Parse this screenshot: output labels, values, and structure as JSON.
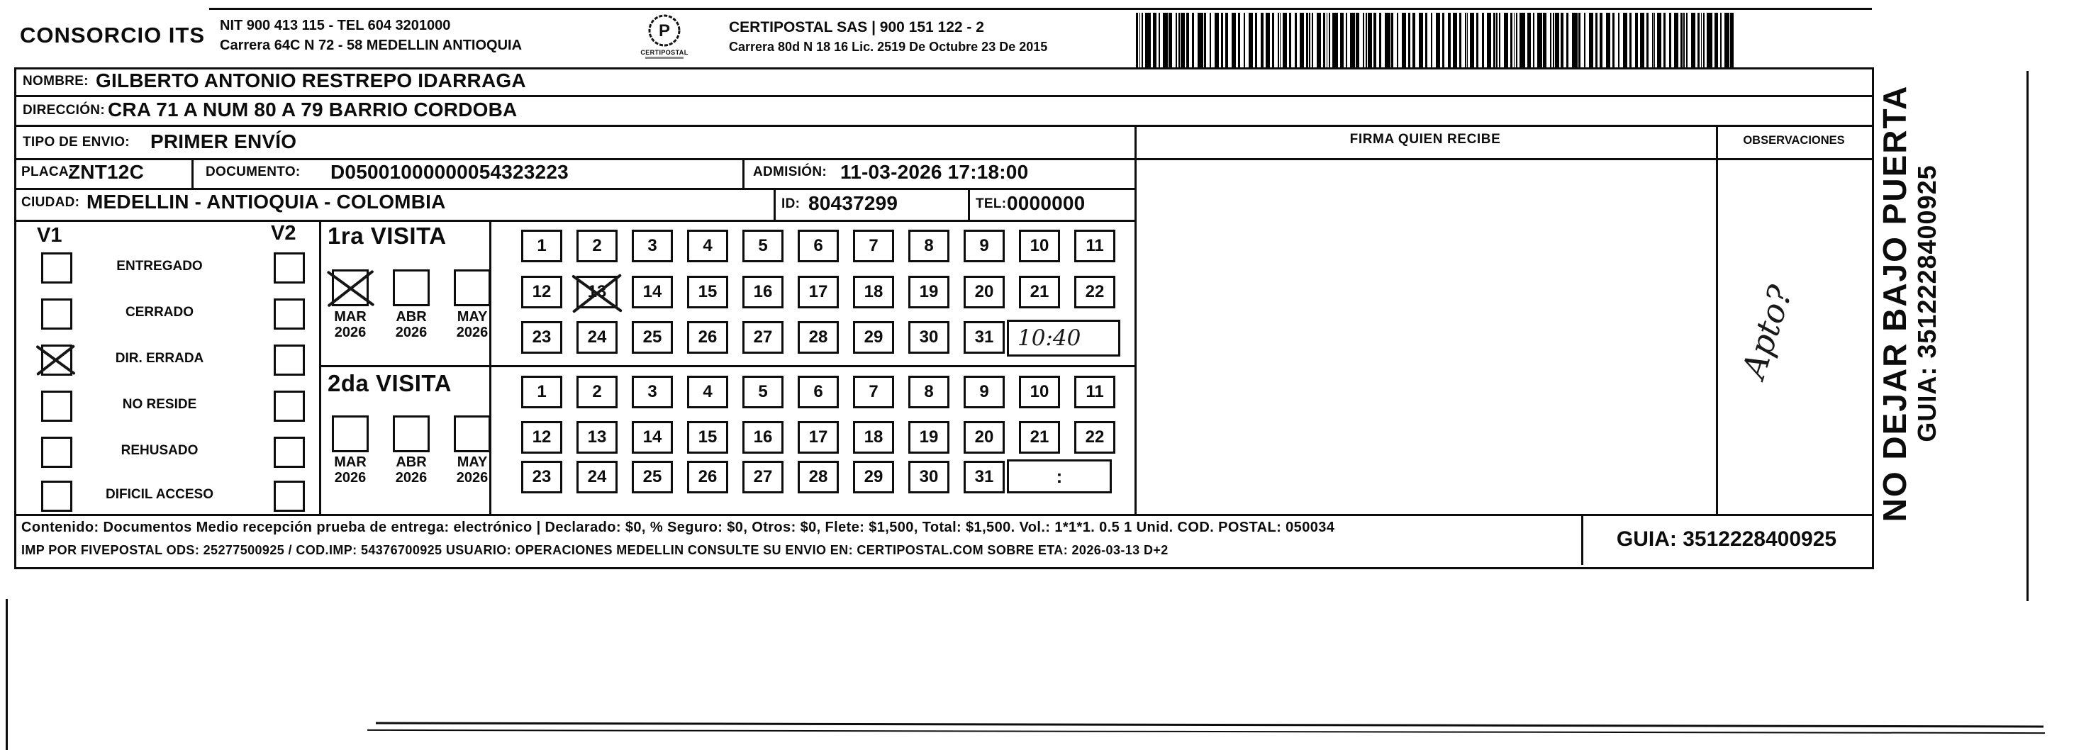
{
  "header": {
    "company": "CONSORCIO ITS",
    "company_line1": "NIT 900 413 115 - TEL 604 3201000",
    "company_line2": "Carrera 64C N 72 - 58 MEDELLIN ANTIOQUIA",
    "logo_text": "CERTIPOSTAL",
    "carrier_line1": "CERTIPOSTAL SAS | 900 151 122 - 2",
    "carrier_line2": "Carrera 80d N 18 16  Lic. 2519 De Octubre 23 De 2015"
  },
  "recipient": {
    "nombre_label": "NOMBRE:",
    "nombre": "GILBERTO ANTONIO RESTREPO IDARRAGA",
    "direccion_label": "DIRECCIÓN:",
    "direccion": "CRA 71 A NUM 80 A 79 BARRIO CORDOBA",
    "tipo_label": "TIPO DE ENVIO:",
    "tipo": "PRIMER ENVÍO",
    "placa_label": "PLACA:",
    "placa": "ZNT12C",
    "documento_label": "DOCUMENTO:",
    "documento": "D05001000000054323223",
    "admision_label": "ADMISIÓN:",
    "admision": "11-03-2026 17:18:00",
    "ciudad_label": "CIUDAD:",
    "ciudad": "MEDELLIN - ANTIOQUIA - COLOMBIA",
    "id_label": "ID:",
    "id_value": "80437299",
    "tel_label": "TEL:",
    "tel_value": "0000000"
  },
  "columns": {
    "firma_header": "FIRMA QUIEN RECIBE",
    "observaciones_header": "OBSERVACIONES",
    "observaciones_note": "Apto?"
  },
  "status": {
    "v1_header": "V1",
    "v2_header": "V2",
    "items": [
      {
        "label": "ENTREGADO",
        "v1": false,
        "v2": false
      },
      {
        "label": "CERRADO",
        "v1": false,
        "v2": false
      },
      {
        "label": "DIR. ERRADA",
        "v1": true,
        "v2": false
      },
      {
        "label": "NO RESIDE",
        "v1": false,
        "v2": false
      },
      {
        "label": "REHUSADO",
        "v1": false,
        "v2": false
      },
      {
        "label": "DIFICIL ACCESO",
        "v1": false,
        "v2": false
      }
    ]
  },
  "visits": [
    {
      "title": "1ra VISITA",
      "months": [
        {
          "month": "MAR",
          "year": "2026",
          "checked": true
        },
        {
          "month": "ABR",
          "year": "2026",
          "checked": false
        },
        {
          "month": "MAY",
          "year": "2026",
          "checked": false
        }
      ],
      "day_rows": [
        [
          "1",
          "2",
          "3",
          "4",
          "5",
          "6",
          "7",
          "8",
          "9",
          "10",
          "11"
        ],
        [
          "12",
          "13",
          "14",
          "15",
          "16",
          "17",
          "18",
          "19",
          "20",
          "21",
          "22"
        ],
        [
          "23",
          "24",
          "25",
          "26",
          "27",
          "28",
          "29",
          "30",
          "31"
        ]
      ],
      "crossed_day": "13",
      "time_value": "10:40",
      "time_handwritten": true
    },
    {
      "title": "2da VISITA",
      "months": [
        {
          "month": "MAR",
          "year": "2026",
          "checked": false
        },
        {
          "month": "ABR",
          "year": "2026",
          "checked": false
        },
        {
          "month": "MAY",
          "year": "2026",
          "checked": false
        }
      ],
      "day_rows": [
        [
          "1",
          "2",
          "3",
          "4",
          "5",
          "6",
          "7",
          "8",
          "9",
          "10",
          "11"
        ],
        [
          "12",
          "13",
          "14",
          "15",
          "16",
          "17",
          "18",
          "19",
          "20",
          "21",
          "22"
        ],
        [
          "23",
          "24",
          "25",
          "26",
          "27",
          "28",
          "29",
          "30",
          "31"
        ]
      ],
      "crossed_day": null,
      "time_value": ":",
      "time_handwritten": false
    }
  ],
  "footer": {
    "line1": "Contenido: Documentos Medio recepción prueba de entrega: electrónico | Declarado: $0, % Seguro: $0, Otros: $0, Flete: $1,500, Total: $1,500. Vol.: 1*1*1. 0.5  1 Unid. COD. POSTAL: 050034",
    "line2": "IMP POR FIVEPOSTAL ODS: 25277500925 / COD.IMP: 54376700925 USUARIO: OPERACIONES MEDELLIN CONSULTE SU ENVIO EN: CERTIPOSTAL.COM SOBRE ETA: 2026-03-13 D+2",
    "guia": "GUIA: 3512228400925"
  },
  "side": {
    "warning": "NO DEJAR BAJO PUERTA",
    "guia": "GUIA: 3512228400925"
  }
}
